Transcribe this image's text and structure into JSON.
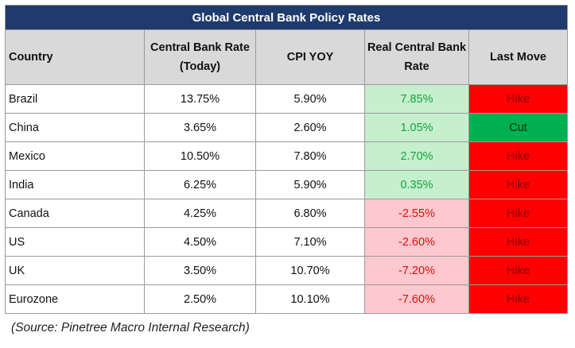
{
  "table": {
    "title": "Global Central Bank Policy Rates",
    "headers": {
      "country": "Country",
      "rate_line1": "Central Bank Rate",
      "rate_line2": "(Today)",
      "cpi": "CPI YOY",
      "real_line1": "Real Central Bank",
      "real_line2": "Rate",
      "last_move": "Last Move"
    },
    "rows": [
      {
        "country": "Brazil",
        "rate": "13.75%",
        "cpi": "5.90%",
        "real": "7.85%",
        "move": "Hike"
      },
      {
        "country": "China",
        "rate": "3.65%",
        "cpi": "2.60%",
        "real": "1.05%",
        "move": "Cut"
      },
      {
        "country": "Mexico",
        "rate": "10.50%",
        "cpi": "7.80%",
        "real": "2.70%",
        "move": "Hike"
      },
      {
        "country": "India",
        "rate": "6.25%",
        "cpi": "5.90%",
        "real": "0.35%",
        "move": "Hike"
      },
      {
        "country": "Canada",
        "rate": "4.25%",
        "cpi": "6.80%",
        "real": "-2.55%",
        "move": "Hike"
      },
      {
        "country": "US",
        "rate": "4.50%",
        "cpi": "7.10%",
        "real": "-2.60%",
        "move": "Hike"
      },
      {
        "country": "UK",
        "rate": "3.50%",
        "cpi": "10.70%",
        "real": "-7.20%",
        "move": "Hike"
      },
      {
        "country": "Eurozone",
        "rate": "2.50%",
        "cpi": "10.10%",
        "real": "-7.60%",
        "move": "Hike"
      }
    ]
  },
  "source": "(Source: Pinetree Macro Internal Research)",
  "colors": {
    "title_bg": "#1f3b6e",
    "header_bg": "#d9d9d9",
    "positive_bg": "#c6efce",
    "positive_text": "#12a53a",
    "negative_bg": "#ffc7ce",
    "negative_text": "#e01010",
    "hike_bg": "#ff0000",
    "cut_bg": "#00b050"
  }
}
